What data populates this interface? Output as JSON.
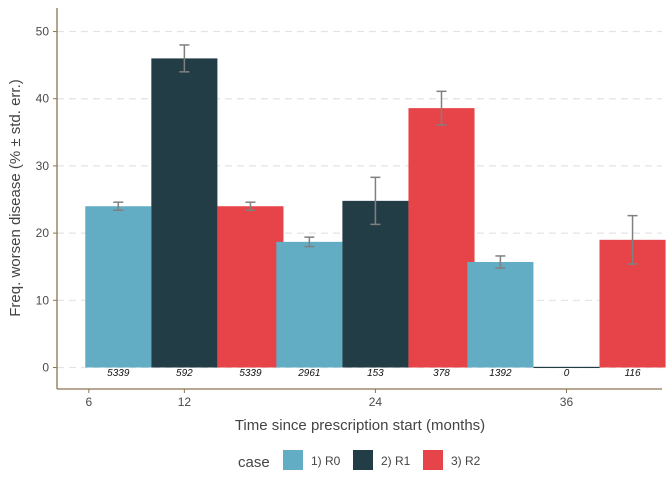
{
  "chart_data": {
    "type": "bar",
    "xlabel": "Time since prescription start (months)",
    "ylabel": "Freq. worsen disease (% ± std. err.)",
    "xlim": [
      4,
      42
    ],
    "ylim": [
      -3.2,
      53.5
    ],
    "x_ticks": [
      6,
      12,
      24,
      36
    ],
    "y_ticks": [
      0,
      10,
      20,
      30,
      40,
      50
    ],
    "grid": true,
    "categories": [
      12,
      24,
      36
    ],
    "legend": {
      "title": "case",
      "position": "bottom"
    },
    "series": [
      {
        "name": "1) R0",
        "color": "#63adc4",
        "values": [
          24.0,
          18.7,
          15.7
        ],
        "stderr": [
          0.6,
          0.7,
          0.9
        ],
        "n_labels": [
          "5339",
          "2961",
          "1392"
        ]
      },
      {
        "name": "2) R1",
        "color": "#233d47",
        "values": [
          46.0,
          24.8,
          0.1
        ],
        "stderr": [
          2.0,
          3.5,
          0.0
        ],
        "n_labels": [
          "592",
          "153",
          "0"
        ]
      },
      {
        "name": "3) R2",
        "color": "#e64448",
        "values": [
          24.0,
          38.6,
          19.0
        ],
        "stderr": [
          0.6,
          2.5,
          3.6
        ],
        "n_labels": [
          "5339",
          "378",
          "116"
        ]
      }
    ]
  }
}
